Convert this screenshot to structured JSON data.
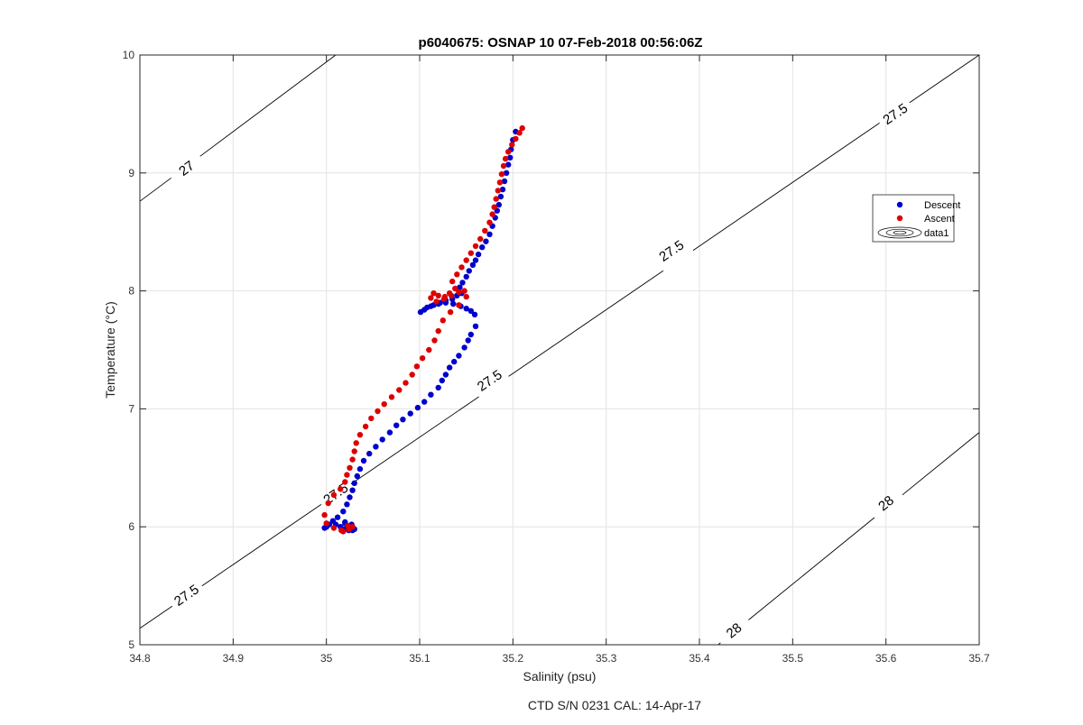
{
  "chart_data": {
    "type": "scatter",
    "title": "p6040675: OSNAP 10 07-Feb-2018 00:56:06Z",
    "xlabel": "Salinity (psu)",
    "ylabel": "Temperature (°C)",
    "footer": "CTD S/N 0231  CAL: 14-Apr-17",
    "xlim": [
      34.8,
      35.7
    ],
    "ylim": [
      5,
      10
    ],
    "xticks": [
      34.8,
      34.9,
      35,
      35.1,
      35.2,
      35.3,
      35.4,
      35.5,
      35.6,
      35.7
    ],
    "yticks": [
      5,
      6,
      7,
      8,
      9,
      10
    ],
    "x_tick_labels": [
      "34.8",
      "34.9",
      "35",
      "35.1",
      "35.2",
      "35.3",
      "35.4",
      "35.5",
      "35.6",
      "35.7"
    ],
    "y_tick_labels": [
      "5",
      "6",
      "7",
      "8",
      "9",
      "10"
    ],
    "grid": true,
    "legend_position": "right",
    "series": [
      {
        "name": "Descent",
        "color": "#0000cc",
        "x": [
          35.203,
          35.2,
          35.198,
          35.197,
          35.195,
          35.193,
          35.191,
          35.189,
          35.187,
          35.185,
          35.183,
          35.181,
          35.178,
          35.175,
          35.171,
          35.167,
          35.163,
          35.16,
          35.157,
          35.153,
          35.15,
          35.146,
          35.143,
          35.145,
          35.14,
          35.135,
          35.128,
          35.122,
          35.115,
          35.108,
          35.101,
          35.105,
          35.112,
          35.12,
          35.128,
          35.136,
          35.144,
          35.15,
          35.155,
          35.159,
          35.16,
          35.155,
          35.152,
          35.148,
          35.142,
          35.137,
          35.132,
          35.128,
          35.124,
          35.12,
          35.112,
          35.105,
          35.098,
          35.09,
          35.082,
          35.075,
          35.068,
          35.06,
          35.053,
          35.046,
          35.04,
          35.036,
          35.033,
          35.03,
          35.028,
          35.025,
          35.022,
          35.018,
          35.012,
          35.007,
          35.003,
          35.0,
          34.998,
          35.0,
          35.01,
          35.02,
          35.027,
          35.03,
          35.028,
          35.024,
          35.02,
          35.015
        ],
        "y": [
          9.35,
          9.28,
          9.2,
          9.13,
          9.07,
          9.0,
          8.93,
          8.86,
          8.8,
          8.73,
          8.68,
          8.62,
          8.55,
          8.48,
          8.42,
          8.37,
          8.31,
          8.26,
          8.22,
          8.17,
          8.12,
          8.07,
          8.03,
          7.98,
          7.96,
          7.93,
          7.92,
          7.9,
          7.88,
          7.86,
          7.82,
          7.84,
          7.87,
          7.89,
          7.9,
          7.89,
          7.87,
          7.85,
          7.83,
          7.8,
          7.7,
          7.63,
          7.58,
          7.52,
          7.45,
          7.4,
          7.35,
          7.29,
          7.24,
          7.18,
          7.12,
          7.06,
          7.01,
          6.96,
          6.91,
          6.86,
          6.8,
          6.74,
          6.68,
          6.62,
          6.56,
          6.49,
          6.43,
          6.37,
          6.31,
          6.25,
          6.19,
          6.13,
          6.08,
          6.05,
          6.02,
          6.0,
          5.99,
          6.0,
          6.02,
          6.03,
          6.02,
          5.98,
          5.97,
          5.97,
          5.98,
          6.0
        ],
        "x_more": [
          35.02
        ],
        "y_more": [
          6.04
        ]
      },
      {
        "name": "Ascent",
        "color": "#dd0000",
        "x": [
          35.21,
          35.207,
          35.203,
          35.199,
          35.195,
          35.192,
          35.19,
          35.188,
          35.186,
          35.184,
          35.182,
          35.18,
          35.178,
          35.175,
          35.17,
          35.165,
          35.16,
          35.155,
          35.15,
          35.145,
          35.14,
          35.135,
          35.138,
          35.132,
          35.127,
          35.12,
          35.115,
          35.112,
          35.118,
          35.126,
          35.134,
          35.142,
          35.148,
          35.15,
          35.142,
          35.133,
          35.125,
          35.12,
          35.116,
          35.11,
          35.103,
          35.097,
          35.092,
          35.085,
          35.078,
          35.07,
          35.062,
          35.055,
          35.048,
          35.042,
          35.036,
          35.032,
          35.03,
          35.028,
          35.025,
          35.022,
          35.02,
          35.015,
          35.008,
          35.002,
          34.998,
          35.0,
          35.008,
          35.016,
          35.024,
          35.028,
          35.023,
          35.018
        ],
        "y": [
          9.38,
          9.34,
          9.29,
          9.24,
          9.18,
          9.12,
          9.06,
          8.99,
          8.92,
          8.85,
          8.78,
          8.71,
          8.65,
          8.58,
          8.51,
          8.44,
          8.38,
          8.32,
          8.26,
          8.2,
          8.14,
          8.08,
          8.02,
          7.98,
          7.95,
          7.96,
          7.98,
          7.94,
          7.91,
          7.93,
          7.96,
          7.99,
          8.0,
          7.95,
          7.88,
          7.82,
          7.75,
          7.66,
          7.58,
          7.5,
          7.43,
          7.36,
          7.29,
          7.22,
          7.16,
          7.1,
          7.04,
          6.98,
          6.92,
          6.85,
          6.78,
          6.71,
          6.64,
          6.57,
          6.5,
          6.44,
          6.38,
          6.32,
          6.27,
          6.2,
          6.1,
          6.03,
          5.99,
          5.97,
          5.98,
          6.0,
          6.01,
          5.96
        ]
      },
      {
        "name": "data1",
        "type": "contour",
        "color": "#000000",
        "levels": [
          27,
          27.5,
          28
        ],
        "level_labels": [
          "27",
          "27.5",
          "27.5",
          "27.5",
          "27.5",
          "27.5",
          "28",
          "28"
        ]
      }
    ]
  }
}
